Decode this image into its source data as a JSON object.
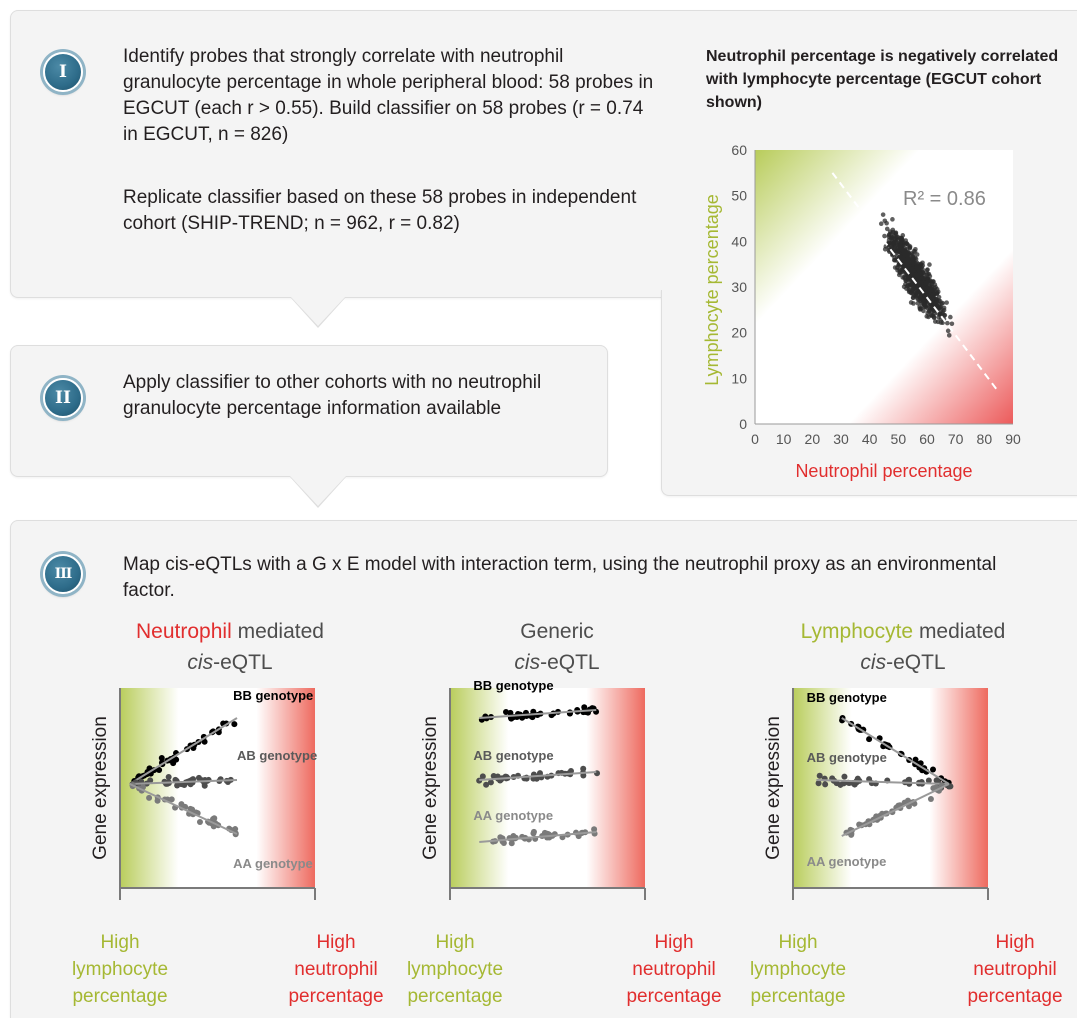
{
  "step1": {
    "badge": "I",
    "text1": "Identify probes that strongly correlate with neutrophil granulocyte percentage in whole peripheral blood: 58 probes in EGCUT (each r > 0.55). Build classifier on 58 probes (r = 0.74 in EGCUT, n = 826)",
    "text2": "Replicate classifier based on these 58 probes in independent cohort (SHIP-TREND; n = 962, r = 0.82)"
  },
  "step2": {
    "badge": "II",
    "text": "Apply classifier to other cohorts with no neutrophil granulocyte percentage information available"
  },
  "step3": {
    "badge": "III",
    "text": "Map cis-eQTLs with a G x E model with interaction term, using the neutrophil proxy as an environmental factor."
  },
  "scatter_title": "Neutrophil percentage is negatively correlated with lymphocyte percentage (EGCUT cohort shown)",
  "chart_data": [
    {
      "type": "scatter",
      "title": "Neutrophil percentage is negatively correlated with lymphocyte percentage (EGCUT cohort shown)",
      "xlabel": "Neutrophil percentage",
      "ylabel": "Lymphocyte percentage",
      "xlim": [
        0,
        90
      ],
      "ylim": [
        0,
        60
      ],
      "xticks": [
        0,
        10,
        20,
        30,
        40,
        50,
        60,
        70,
        80,
        90
      ],
      "yticks": [
        0,
        10,
        20,
        30,
        40,
        50,
        60
      ],
      "annotation": "R² = 0.86",
      "fit_line": {
        "x": [
          27,
          85
        ],
        "y": [
          55,
          7
        ]
      },
      "n": 826,
      "point_cloud": {
        "x_range": [
          34,
          80
        ],
        "y_center_at_x": [
          [
            34,
            55
          ],
          [
            45,
            42
          ],
          [
            55,
            33
          ],
          [
            65,
            25
          ],
          [
            75,
            15
          ],
          [
            80,
            11
          ]
        ],
        "y_spread": 4
      },
      "xlabel_color": "#e12e2e",
      "ylabel_color": "#a5b833"
    },
    {
      "type": "scatter",
      "title": "Neutrophil mediated cis-eQTL",
      "ylabel": "Gene expression",
      "x_ends": [
        "High lymphocyte percentage",
        "High neutrophil percentage"
      ],
      "series": [
        {
          "name": "BB genotype",
          "trend": [
            [
              0.05,
              0.52
            ],
            [
              0.6,
              0.85
            ]
          ],
          "color": "#000000"
        },
        {
          "name": "AB genotype",
          "trend": [
            [
              0.05,
              0.52
            ],
            [
              0.6,
              0.54
            ]
          ],
          "color": "#4d4d4d"
        },
        {
          "name": "AA genotype",
          "trend": [
            [
              0.05,
              0.52
            ],
            [
              0.6,
              0.27
            ]
          ],
          "color": "#7a7a7a"
        }
      ]
    },
    {
      "type": "scatter",
      "title": "Generic cis-eQTL",
      "ylabel": "Gene expression",
      "x_ends": [
        "High lymphocyte percentage",
        "High neutrophil percentage"
      ],
      "series": [
        {
          "name": "BB genotype",
          "trend": [
            [
              0.15,
              0.85
            ],
            [
              0.75,
              0.89
            ]
          ],
          "color": "#000000"
        },
        {
          "name": "AB genotype",
          "trend": [
            [
              0.15,
              0.54
            ],
            [
              0.75,
              0.58
            ]
          ],
          "color": "#4d4d4d"
        },
        {
          "name": "AA genotype",
          "trend": [
            [
              0.15,
              0.23
            ],
            [
              0.75,
              0.28
            ]
          ],
          "color": "#7a7a7a"
        }
      ]
    },
    {
      "type": "scatter",
      "title": "Lymphocyte mediated cis-eQTL",
      "ylabel": "Gene expression",
      "x_ends": [
        "High lymphocyte percentage",
        "High neutrophil percentage"
      ],
      "series": [
        {
          "name": "BB genotype",
          "trend": [
            [
              0.25,
              0.85
            ],
            [
              0.8,
              0.52
            ]
          ],
          "color": "#000000"
        },
        {
          "name": "AB genotype",
          "trend": [
            [
              0.12,
              0.54
            ],
            [
              0.8,
              0.52
            ]
          ],
          "color": "#4d4d4d"
        },
        {
          "name": "AA genotype",
          "trend": [
            [
              0.25,
              0.26
            ],
            [
              0.8,
              0.52
            ]
          ],
          "color": "#7a7a7a"
        }
      ]
    }
  ],
  "mechanisms": [
    {
      "lead": "Neutrophil",
      "rest": " mediated",
      "sub": "cis",
      "sub_rest": "-eQTL",
      "lead_color": "#e12e2e"
    },
    {
      "lead": "",
      "rest": "Generic",
      "sub": "cis",
      "sub_rest": "-eQTL",
      "lead_color": "#4d4d4d"
    },
    {
      "lead": "Lymphocyte",
      "rest": " mediated",
      "sub": "cis",
      "sub_rest": "-eQTL",
      "lead_color": "#a5b833"
    }
  ],
  "axis_ends": {
    "left": [
      "High",
      "lymphocyte",
      "percentage"
    ],
    "right": [
      "High",
      "neutrophil",
      "percentage"
    ]
  },
  "colors": {
    "green": "#a5b833",
    "red": "#e12e2e",
    "badge": "#2e6c8a",
    "panel": "#f4f4f4"
  }
}
